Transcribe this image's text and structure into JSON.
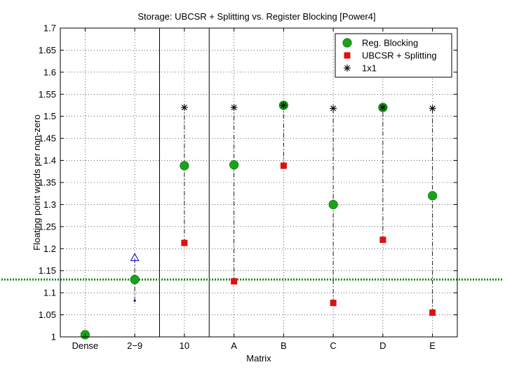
{
  "chart_data": {
    "type": "scatter",
    "title": "Storage: UBCSR + Splitting vs. Register Blocking [Power4]",
    "xlabel": "Matrix",
    "ylabel": "Floating point words per non-zero",
    "categories": [
      "Dense",
      "2−9",
      "10",
      "A",
      "B",
      "C",
      "D",
      "E"
    ],
    "ylim": [
      1,
      1.7
    ],
    "yticks": [
      "1",
      "1.05",
      "1.1",
      "1.15",
      "1.2",
      "1.25",
      "1.3",
      "1.35",
      "1.4",
      "1.45",
      "1.5",
      "1.55",
      "1.6",
      "1.65",
      "1.7"
    ],
    "grid": true,
    "legend_position": "top-right",
    "series": [
      {
        "name": "Reg. Blocking",
        "marker": "circle",
        "color": "#1aa31a",
        "values": [
          1.005,
          1.13,
          1.388,
          1.39,
          1.525,
          1.3,
          1.52,
          1.32
        ]
      },
      {
        "name": "UBCSR + Splitting",
        "marker": "square",
        "color": "#dd1111",
        "values": [
          null,
          null,
          1.213,
          1.126,
          1.388,
          1.077,
          1.22,
          1.055
        ]
      },
      {
        "name": "1x1",
        "marker": "star",
        "color": "#000000",
        "values": [
          null,
          null,
          1.52,
          1.52,
          1.525,
          1.518,
          1.52,
          1.518
        ]
      }
    ],
    "extra_markers": {
      "category": "2−9",
      "upper_triangle": 1.18,
      "lower_dot": 1.082,
      "triangle_color": "#0000cc"
    },
    "reference_line": {
      "y": 1.13,
      "style": "dotted",
      "color": "#1a8a1a"
    },
    "group_separators": [
      1.5,
      2.5
    ]
  }
}
